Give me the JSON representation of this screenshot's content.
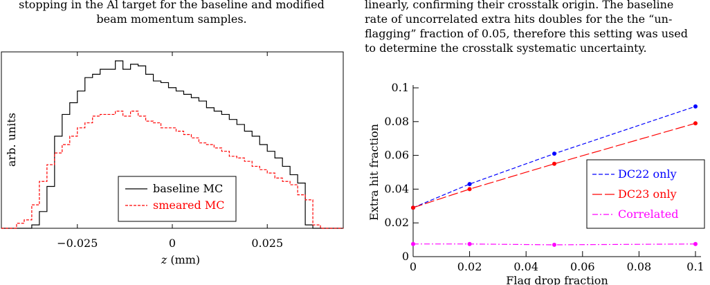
{
  "left_caption": {
    "line1": "stopping in the Al target for the baseline and modified",
    "line2": "beam momentum samples."
  },
  "right_text": {
    "line1": "linearly, confirming their crosstalk origin. The baseline",
    "line2": "rate of uncorrelated extra hits doubles for the the “un-",
    "line3": "flagging” fraction of 0.05, therefore this setting was used",
    "line4": "to determine the crosstalk systematic uncertainty."
  },
  "chart_data": [
    {
      "type": "line",
      "xlabel": "z (mm)",
      "ylabel": "arb. units",
      "xlim": [
        -0.045,
        0.045
      ],
      "x_ticks": [
        -0.025,
        0,
        0.025
      ],
      "x_tick_labels": [
        "−0.025",
        "0",
        "0.025"
      ],
      "series": [
        {
          "name": "baseline MC",
          "color": "#000000",
          "style": "solid-step",
          "x": [
            -0.036,
            -0.034,
            -0.032,
            -0.03,
            -0.028,
            -0.026,
            -0.024,
            -0.022,
            -0.02,
            -0.018,
            -0.016,
            -0.014,
            -0.012,
            -0.01,
            -0.008,
            -0.006,
            -0.004,
            -0.002,
            0.0,
            0.002,
            0.004,
            0.006,
            0.008,
            0.01,
            0.012,
            0.014,
            0.016,
            0.018,
            0.02,
            0.022,
            0.024,
            0.026,
            0.028,
            0.03,
            0.032,
            0.034,
            0.036
          ],
          "y": [
            0.02,
            0.1,
            0.25,
            0.55,
            0.68,
            0.75,
            0.82,
            0.9,
            0.92,
            0.95,
            0.95,
            1.0,
            0.95,
            0.98,
            0.97,
            0.92,
            0.88,
            0.87,
            0.84,
            0.82,
            0.8,
            0.78,
            0.76,
            0.72,
            0.7,
            0.68,
            0.65,
            0.62,
            0.58,
            0.55,
            0.5,
            0.46,
            0.42,
            0.37,
            0.32,
            0.27,
            0.02
          ]
        },
        {
          "name": "smeared MC",
          "color": "#ff0000",
          "style": "dashed-step",
          "x": [
            -0.04,
            -0.038,
            -0.036,
            -0.034,
            -0.032,
            -0.03,
            -0.028,
            -0.026,
            -0.024,
            -0.022,
            -0.02,
            -0.018,
            -0.016,
            -0.014,
            -0.012,
            -0.01,
            -0.008,
            -0.006,
            -0.004,
            -0.002,
            0.0,
            0.002,
            0.004,
            0.006,
            0.008,
            0.01,
            0.012,
            0.014,
            0.016,
            0.018,
            0.02,
            0.022,
            0.024,
            0.026,
            0.028,
            0.03,
            0.032,
            0.034,
            0.036,
            0.038
          ],
          "y": [
            0.03,
            0.05,
            0.14,
            0.28,
            0.38,
            0.45,
            0.5,
            0.55,
            0.6,
            0.63,
            0.67,
            0.68,
            0.68,
            0.7,
            0.67,
            0.7,
            0.67,
            0.64,
            0.63,
            0.6,
            0.6,
            0.58,
            0.56,
            0.54,
            0.51,
            0.5,
            0.48,
            0.46,
            0.43,
            0.42,
            0.4,
            0.37,
            0.35,
            0.33,
            0.3,
            0.28,
            0.26,
            0.2,
            0.17,
            0.02
          ]
        }
      ]
    },
    {
      "type": "line",
      "xlabel": "Flag drop fraction",
      "ylabel": "Extra hit fraction",
      "xlim": [
        0,
        0.1
      ],
      "ylim": [
        0,
        0.1
      ],
      "x_ticks": [
        0,
        0.02,
        0.04,
        0.06,
        0.08,
        0.1
      ],
      "x_tick_labels": [
        "0",
        "0.02",
        "0.04",
        "0.06",
        "0.08",
        "0.1"
      ],
      "y_ticks": [
        0,
        0.02,
        0.04,
        0.06,
        0.08,
        0.1
      ],
      "y_tick_labels": [
        "0",
        "0.02",
        "0.04",
        "0.06",
        "0.08",
        "0.1"
      ],
      "legend_position": "lower-right",
      "series": [
        {
          "name": "DC22 only",
          "color": "#0000ff",
          "style": "dashed",
          "x": [
            0,
            0.02,
            0.05,
            0.1
          ],
          "y": [
            0.029,
            0.043,
            0.061,
            0.089
          ]
        },
        {
          "name": "DC23 only",
          "color": "#ff0000",
          "style": "long-dashed",
          "x": [
            0,
            0.02,
            0.05,
            0.1
          ],
          "y": [
            0.029,
            0.04,
            0.055,
            0.079
          ]
        },
        {
          "name": "Correlated",
          "color": "#ff00ff",
          "style": "dash-dot",
          "x": [
            0,
            0.02,
            0.05,
            0.1
          ],
          "y": [
            0.0075,
            0.0075,
            0.007,
            0.0075
          ]
        }
      ]
    }
  ]
}
